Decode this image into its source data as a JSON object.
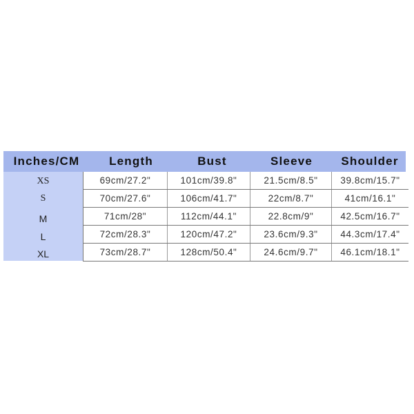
{
  "colors": {
    "header_bg": "#a4b6ec",
    "size_column_bg": "#c5d1f6"
  },
  "headers": [
    "Inches/CM",
    "Length",
    "Bust",
    "Sleeve",
    "Shoulder"
  ],
  "rows": [
    {
      "size": "XS",
      "values": [
        "69cm/27.2\"",
        "101cm/39.8\"",
        "21.5cm/8.5\"",
        "39.8cm/15.7\""
      ]
    },
    {
      "size": "S",
      "values": [
        "70cm/27.6\"",
        "106cm/41.7\"",
        "22cm/8.7\"",
        "41cm/16.1\""
      ]
    },
    {
      "size": "M",
      "values": [
        "71cm/28\"",
        "112cm/44.1\"",
        "22.8cm/9\"",
        "42.5cm/16.7\""
      ]
    },
    {
      "size": "L",
      "values": [
        "72cm/28.3\"",
        "120cm/47.2\"",
        "23.6cm/9.3\"",
        "44.3cm/17.4\""
      ]
    },
    {
      "size": "XL",
      "values": [
        "73cm/28.7\"",
        "128cm/50.4\"",
        "24.6cm/9.7\"",
        "46.1cm/18.1\""
      ]
    }
  ]
}
